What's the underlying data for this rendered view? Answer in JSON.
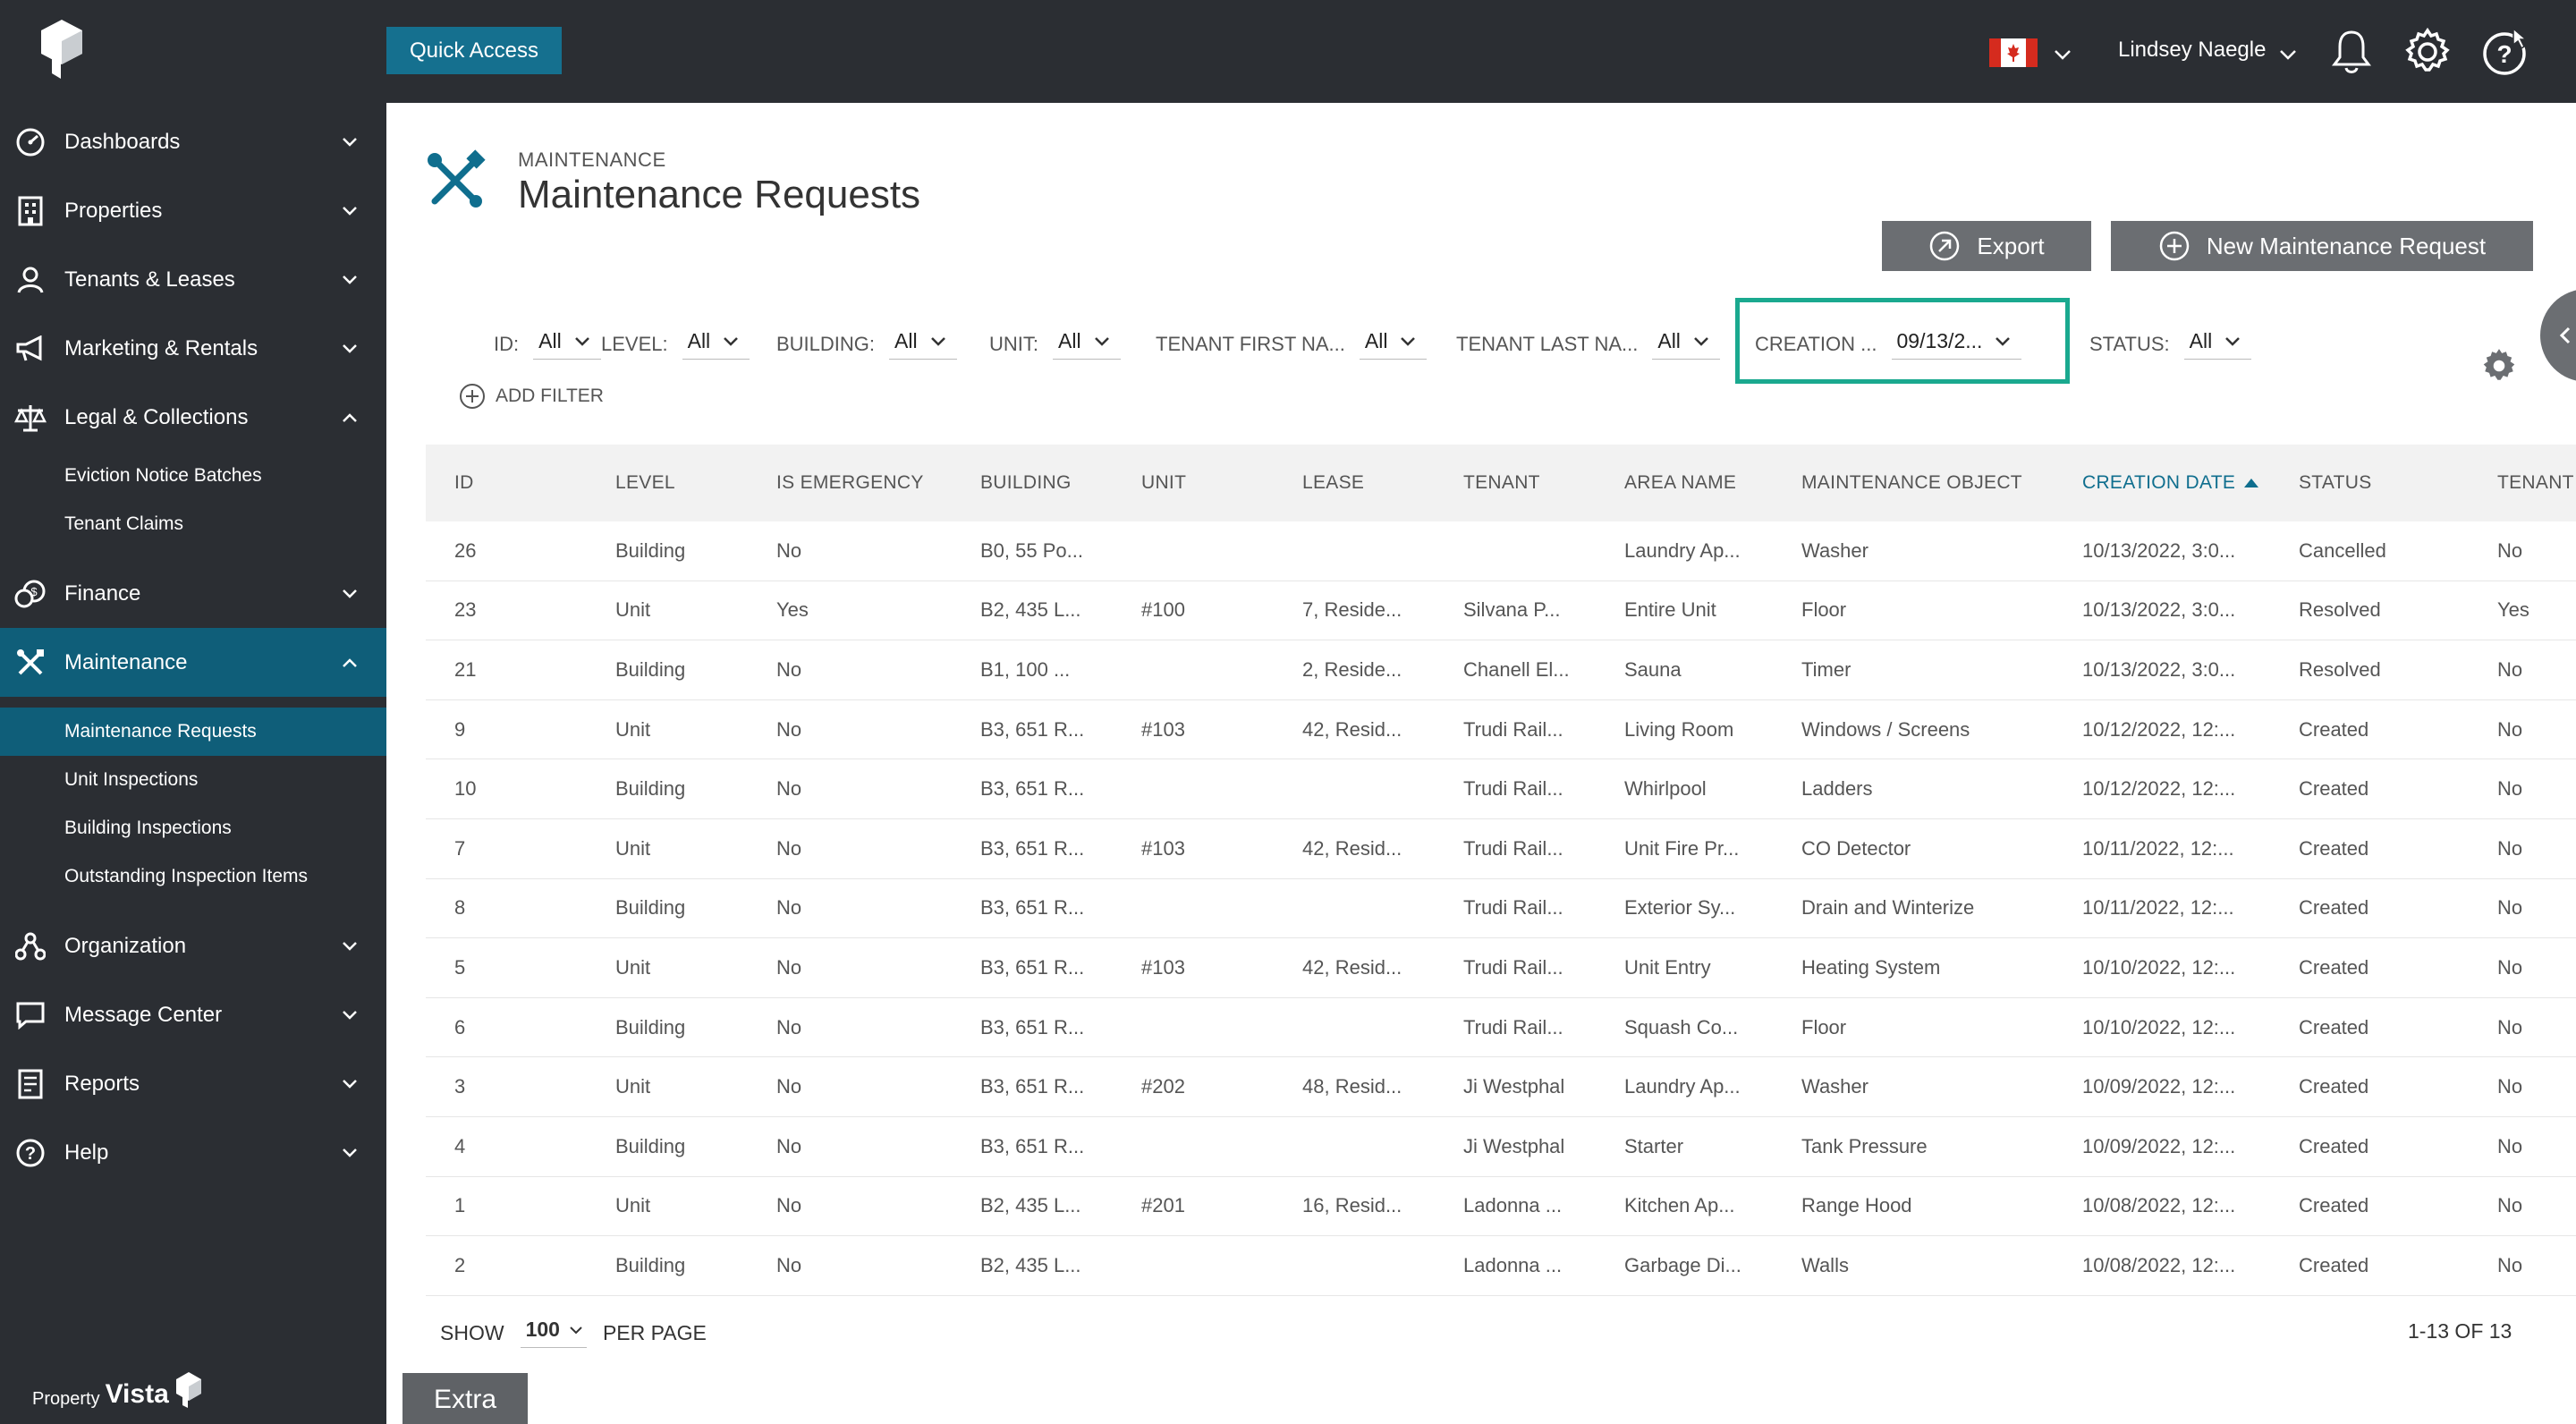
{
  "topbar": {
    "quick_access": "Quick Access",
    "user_name": "Lindsey Naegle",
    "flag": "canada-flag"
  },
  "sidebar": {
    "items": [
      {
        "label": "Dashboards",
        "icon": "dashboard-icon"
      },
      {
        "label": "Properties",
        "icon": "building-icon"
      },
      {
        "label": "Tenants & Leases",
        "icon": "person-icon"
      },
      {
        "label": "Marketing & Rentals",
        "icon": "megaphone-icon"
      },
      {
        "label": "Legal & Collections",
        "icon": "scales-icon"
      },
      {
        "label": "Finance",
        "icon": "coins-icon"
      },
      {
        "label": "Maintenance",
        "icon": "tools-icon"
      },
      {
        "label": "Organization",
        "icon": "org-icon"
      },
      {
        "label": "Message Center",
        "icon": "message-icon"
      },
      {
        "label": "Reports",
        "icon": "report-icon"
      },
      {
        "label": "Help",
        "icon": "help-icon"
      }
    ],
    "legal_sub": [
      "Eviction Notice Batches",
      "Tenant Claims"
    ],
    "maintenance_sub": [
      "Maintenance Requests",
      "Unit Inspections",
      "Building Inspections",
      "Outstanding Inspection Items"
    ],
    "brand_small": "Property",
    "brand_big": "Vista"
  },
  "page": {
    "breadcrumb": "MAINTENANCE",
    "title": "Maintenance Requests",
    "export_label": "Export",
    "new_label": "New Maintenance Request",
    "add_filter": "ADD FILTER"
  },
  "filters": [
    {
      "label": "ID:",
      "value": "All"
    },
    {
      "label": "LEVEL:",
      "value": "All"
    },
    {
      "label": "BUILDING:",
      "value": "All"
    },
    {
      "label": "UNIT:",
      "value": "All"
    },
    {
      "label": "TENANT FIRST NA...",
      "value": "All"
    },
    {
      "label": "TENANT LAST NA...",
      "value": "All"
    },
    {
      "label": "CREATION ...",
      "value": "09/13/2..."
    },
    {
      "label": "STATUS:",
      "value": "All"
    }
  ],
  "table": {
    "columns": [
      "ID",
      "LEVEL",
      "IS EMERGENCY",
      "BUILDING",
      "UNIT",
      "LEASE",
      "TENANT",
      "AREA NAME",
      "MAINTENANCE OBJECT",
      "CREATION DATE",
      "STATUS",
      "TENANT"
    ],
    "rows": [
      [
        "26",
        "Building",
        "No",
        "B0, 55 Po...",
        "",
        "",
        "",
        "Laundry Ap...",
        "Washer",
        "10/13/2022, 3:0...",
        "Cancelled",
        "No"
      ],
      [
        "23",
        "Unit",
        "Yes",
        "B2, 435 L...",
        "#100",
        "7, Reside...",
        "Silvana P...",
        "Entire Unit",
        "Floor",
        "10/13/2022, 3:0...",
        "Resolved",
        "Yes"
      ],
      [
        "21",
        "Building",
        "No",
        "B1, 100 ...",
        "",
        "2, Reside...",
        "Chanell El...",
        "Sauna",
        "Timer",
        "10/13/2022, 3:0...",
        "Resolved",
        "No"
      ],
      [
        "9",
        "Unit",
        "No",
        "B3, 651 R...",
        "#103",
        "42, Resid...",
        "Trudi Rail...",
        "Living Room",
        "Windows / Screens",
        "10/12/2022, 12:...",
        "Created",
        "No"
      ],
      [
        "10",
        "Building",
        "No",
        "B3, 651 R...",
        "",
        "",
        "Trudi Rail...",
        "Whirlpool",
        "Ladders",
        "10/12/2022, 12:...",
        "Created",
        "No"
      ],
      [
        "7",
        "Unit",
        "No",
        "B3, 651 R...",
        "#103",
        "42, Resid...",
        "Trudi Rail...",
        "Unit Fire Pr...",
        "CO Detector",
        "10/11/2022, 12:...",
        "Created",
        "No"
      ],
      [
        "8",
        "Building",
        "No",
        "B3, 651 R...",
        "",
        "",
        "Trudi Rail...",
        "Exterior Sy...",
        "Drain and Winterize",
        "10/11/2022, 12:...",
        "Created",
        "No"
      ],
      [
        "5",
        "Unit",
        "No",
        "B3, 651 R...",
        "#103",
        "42, Resid...",
        "Trudi Rail...",
        "Unit Entry",
        "Heating System",
        "10/10/2022, 12:...",
        "Created",
        "No"
      ],
      [
        "6",
        "Building",
        "No",
        "B3, 651 R...",
        "",
        "",
        "Trudi Rail...",
        "Squash Co...",
        "Floor",
        "10/10/2022, 12:...",
        "Created",
        "No"
      ],
      [
        "3",
        "Unit",
        "No",
        "B3, 651 R...",
        "#202",
        "48, Resid...",
        "Ji Westphal",
        "Laundry Ap...",
        "Washer",
        "10/09/2022, 12:...",
        "Created",
        "No"
      ],
      [
        "4",
        "Building",
        "No",
        "B3, 651 R...",
        "",
        "",
        "Ji Westphal",
        "Starter",
        "Tank Pressure",
        "10/09/2022, 12:...",
        "Created",
        "No"
      ],
      [
        "1",
        "Unit",
        "No",
        "B2, 435 L...",
        "#201",
        "16, Resid...",
        "Ladonna ...",
        "Kitchen Ap...",
        "Range Hood",
        "10/08/2022, 12:...",
        "Created",
        "No"
      ],
      [
        "2",
        "Building",
        "No",
        "B2, 435 L...",
        "",
        "",
        "Ladonna ...",
        "Garbage Di...",
        "Walls",
        "10/08/2022, 12:...",
        "Created",
        "No"
      ]
    ]
  },
  "footer": {
    "show": "SHOW",
    "per_page_value": "100",
    "per_page": "PER PAGE",
    "paging": "1-13 OF 13",
    "extra": "Extra"
  },
  "colors": {
    "sidebar_bg": "#2b2e33",
    "active_bg": "#0f5e79",
    "accent": "#15708f",
    "highlight": "#1aa98f",
    "button_gray": "#6b6e72"
  }
}
